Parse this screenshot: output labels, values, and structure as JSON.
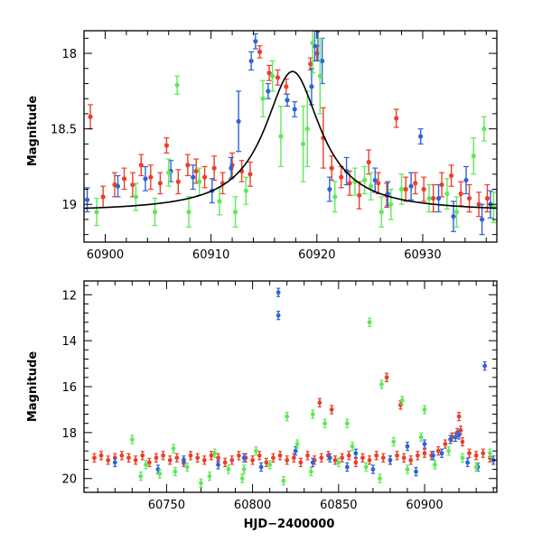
{
  "chart_data": [
    {
      "type": "scatter",
      "panel": "top",
      "xlabel": "",
      "ylabel": "Magnitude",
      "xlim": [
        60898,
        60937
      ],
      "ylim": [
        19.25,
        17.85
      ],
      "y_inverted": true,
      "x_ticks": [
        60900,
        60910,
        60920,
        60930
      ],
      "y_ticks": [
        18,
        18.5,
        19
      ],
      "x_ticklabels": [
        "60900",
        "60910",
        "60920",
        "60930"
      ],
      "y_ticklabels": [
        "18",
        "18.5",
        "19"
      ],
      "grid": false,
      "legend": "none",
      "series": [
        {
          "color": "#e8412a",
          "x": [
            60898.6,
            60899.8,
            60900.9,
            60901.8,
            60902.6,
            60903.4,
            60904.3,
            60905.2,
            60905.8,
            60906.9,
            60907.8,
            60908.6,
            60909.4,
            60910.3,
            60911.1,
            60912.0,
            60912.9,
            60913.7,
            60914.6,
            60915.5,
            60916.3,
            60917.1,
            60919.4,
            60920.0,
            60920.6,
            60921.4,
            60922.3,
            60923.1,
            60924.0,
            60924.9,
            60925.8,
            60926.6,
            60927.5,
            60928.4,
            60929.3,
            60930.1,
            60931.0,
            60931.8,
            60932.7,
            60933.6,
            60934.4,
            60935.3,
            60936.1
          ],
          "y": [
            18.42,
            18.95,
            18.87,
            18.83,
            18.87,
            18.74,
            18.82,
            18.86,
            18.61,
            18.85,
            18.74,
            18.78,
            18.82,
            18.76,
            18.86,
            18.74,
            18.78,
            18.8,
            17.99,
            18.13,
            18.16,
            18.22,
            18.07,
            18.0,
            18.56,
            18.76,
            18.82,
            18.86,
            18.94,
            18.72,
            18.86,
            18.94,
            18.43,
            18.9,
            18.86,
            18.9,
            18.96,
            18.87,
            18.81,
            18.93,
            18.96,
            19.0,
            18.96
          ],
          "err": [
            0.08,
            0.07,
            0.08,
            0.07,
            0.08,
            0.07,
            0.08,
            0.07,
            0.05,
            0.08,
            0.07,
            0.08,
            0.07,
            0.08,
            0.07,
            0.08,
            0.07,
            0.08,
            0.04,
            0.05,
            0.05,
            0.05,
            0.04,
            0.05,
            0.2,
            0.08,
            0.07,
            0.08,
            0.09,
            0.08,
            0.07,
            0.08,
            0.06,
            0.08,
            0.07,
            0.08,
            0.09,
            0.08,
            0.07,
            0.08,
            0.09,
            0.08,
            0.09
          ]
        },
        {
          "color": "#2f63d6",
          "x": [
            60898.3,
            60901.2,
            60903.8,
            60906.2,
            60908.3,
            60910.1,
            60911.9,
            60912.6,
            60913.8,
            60914.2,
            60915.4,
            60917.2,
            60917.9,
            60919.5,
            60919.8,
            60920.1,
            60920.5,
            60921.2,
            60922.8,
            60925.5,
            60926.7,
            60928.9,
            60929.8,
            60931.5,
            60932.9,
            60934.1,
            60935.6,
            60936.4
          ],
          "y": [
            18.97,
            18.88,
            18.83,
            18.78,
            18.82,
            18.91,
            18.76,
            18.45,
            18.05,
            17.92,
            18.25,
            18.31,
            18.37,
            18.22,
            17.95,
            17.85,
            18.05,
            18.9,
            18.78,
            18.84,
            18.93,
            18.88,
            18.55,
            18.96,
            19.08,
            18.84,
            19.1,
            19.0
          ],
          "err": [
            0.08,
            0.07,
            0.08,
            0.07,
            0.08,
            0.08,
            0.07,
            0.2,
            0.06,
            0.05,
            0.05,
            0.04,
            0.05,
            0.12,
            0.1,
            0.2,
            0.15,
            0.08,
            0.09,
            0.08,
            0.08,
            0.09,
            0.05,
            0.09,
            0.1,
            0.09,
            0.1,
            0.09
          ]
        },
        {
          "color": "#5fe85a",
          "x": [
            60899.2,
            60902.9,
            60904.7,
            60906.0,
            60906.8,
            60907.9,
            60908.9,
            60910.8,
            60912.3,
            60913.3,
            60914.9,
            60915.8,
            60916.6,
            60918.7,
            60919.1,
            60919.6,
            60920.3,
            60921.7,
            60923.6,
            60924.5,
            60925.1,
            60926.1,
            60927.0,
            60928.0,
            60930.6,
            60932.3,
            60933.2,
            60934.8,
            60935.8,
            60936.7
          ],
          "y": [
            19.05,
            18.95,
            19.05,
            18.79,
            18.21,
            19.05,
            18.85,
            18.98,
            19.05,
            18.91,
            18.3,
            18.15,
            18.55,
            18.6,
            18.5,
            17.93,
            18.15,
            18.95,
            18.85,
            18.84,
            18.88,
            19.05,
            19.0,
            18.9,
            18.96,
            18.93,
            19.05,
            18.68,
            18.5,
            19.02
          ],
          "err": [
            0.09,
            0.09,
            0.09,
            0.09,
            0.06,
            0.1,
            0.09,
            0.09,
            0.1,
            0.09,
            0.12,
            0.1,
            0.2,
            0.25,
            0.25,
            0.2,
            0.25,
            0.1,
            0.09,
            0.09,
            0.09,
            0.1,
            0.1,
            0.1,
            0.09,
            0.1,
            0.1,
            0.12,
            0.08,
            0.1
          ]
        }
      ],
      "model_curve": {
        "color": "#000000",
        "peak_x": 60917.7,
        "peak_mag": 18.12,
        "baseline_mag": 19.05,
        "width": 3.2,
        "x_range": [
          60898,
          60937
        ]
      }
    },
    {
      "type": "scatter",
      "panel": "bottom",
      "xlabel": "HJD−2400000",
      "ylabel": "Magnitude",
      "xlim": [
        60702,
        60942
      ],
      "ylim": [
        20.6,
        11.4
      ],
      "y_inverted": true,
      "x_ticks": [
        60750,
        60800,
        60850,
        60900
      ],
      "y_ticks": [
        12,
        14,
        16,
        18,
        20
      ],
      "x_ticklabels": [
        "60750",
        "60800",
        "60850",
        "60900"
      ],
      "y_ticklabels": [
        "12",
        "14",
        "16",
        "18",
        "20"
      ],
      "grid": false,
      "legend": "none",
      "series": [
        {
          "color": "#e8412a",
          "x": [
            60708,
            60712,
            60716,
            60720,
            60724,
            60728,
            60732,
            60736,
            60740,
            60744,
            60748,
            60752,
            60756,
            60760,
            60764,
            60768,
            60772,
            60776,
            60780,
            60784,
            60788,
            60792,
            60796,
            60800,
            60804,
            60808,
            60812,
            60816,
            60820,
            60824,
            60828,
            60832,
            60836,
            60840,
            60844,
            60848,
            60852,
            60856,
            60860,
            60864,
            60868,
            60872,
            60876,
            60880,
            60884,
            60888,
            60892,
            60896,
            60900,
            60904,
            60908,
            60912,
            60916,
            60919,
            60920,
            60922,
            60926,
            60930,
            60934,
            60938,
            60839,
            60846,
            60878,
            60886,
            60916,
            60921
          ],
          "y": [
            19.1,
            19.0,
            19.2,
            19.1,
            19.0,
            19.1,
            19.2,
            19.0,
            19.3,
            19.1,
            19.0,
            19.2,
            19.1,
            19.3,
            19.0,
            19.1,
            19.2,
            19.0,
            19.1,
            19.3,
            19.2,
            19.0,
            19.1,
            19.2,
            19.0,
            19.3,
            19.1,
            19.0,
            19.2,
            19.1,
            19.3,
            19.0,
            19.2,
            19.1,
            19.0,
            19.2,
            19.1,
            19.0,
            19.3,
            19.1,
            19.2,
            19.0,
            19.1,
            19.2,
            19.0,
            19.1,
            19.2,
            19.0,
            18.9,
            19.0,
            18.8,
            18.5,
            18.2,
            18.0,
            17.3,
            18.4,
            18.9,
            19.0,
            18.9,
            19.1,
            16.7,
            17.0,
            15.6,
            16.8,
            18.2,
            17.9
          ]
        },
        {
          "color": "#2f63d6",
          "x": [
            60720,
            60745,
            60760,
            60780,
            60795,
            60805,
            60815,
            60815,
            60825,
            60835,
            60845,
            60855,
            60860,
            60870,
            60880,
            60890,
            60895,
            60900,
            60905,
            60910,
            60915,
            60918,
            60920,
            60925,
            60931,
            60935,
            60940
          ],
          "y": [
            19.3,
            19.6,
            19.2,
            19.4,
            19.1,
            19.5,
            11.9,
            12.9,
            18.8,
            19.3,
            19.1,
            19.5,
            18.9,
            19.6,
            19.2,
            18.6,
            19.7,
            18.5,
            19.0,
            18.9,
            18.3,
            18.2,
            18.1,
            19.3,
            19.5,
            15.1,
            19.2
          ]
        },
        {
          "color": "#5fe85a",
          "x": [
            60730,
            60738,
            60746,
            60754,
            60762,
            60770,
            60778,
            60786,
            60794,
            60802,
            60810,
            60818,
            60826,
            60834,
            60842,
            60850,
            60858,
            60866,
            60874,
            60882,
            60890,
            60898,
            60906,
            60914,
            60922,
            60930,
            60938,
            60735,
            60755,
            60775,
            60795,
            60820,
            60835,
            60855,
            60868,
            60875,
            60887,
            60900
          ],
          "y": [
            18.3,
            19.4,
            19.8,
            18.7,
            19.5,
            20.2,
            18.9,
            19.6,
            20.0,
            18.8,
            19.4,
            20.1,
            18.5,
            19.7,
            17.6,
            19.3,
            18.6,
            19.5,
            20.0,
            18.4,
            19.6,
            18.2,
            19.4,
            18.8,
            19.1,
            19.5,
            18.9,
            19.9,
            19.7,
            19.9,
            19.6,
            17.3,
            17.2,
            17.6,
            13.2,
            15.9,
            16.6,
            17.0
          ]
        }
      ]
    }
  ]
}
